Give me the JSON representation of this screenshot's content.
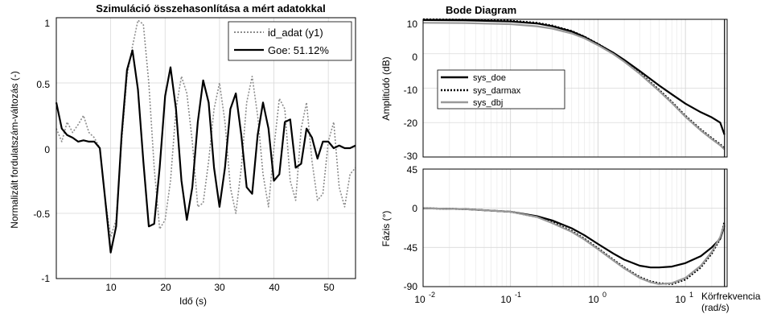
{
  "left_panel": {
    "title": "Szimuláció összehasonlítása a mért adatokkal",
    "xlabel": "Idő (s)",
    "ylabel": "Normalizált fordulatszám-változás (-)",
    "xticks": [
      "10",
      "20",
      "30",
      "40",
      "50"
    ],
    "yticks": [
      "1",
      "0.5",
      "0",
      "-0.5",
      "-1"
    ],
    "legend": [
      "id_adat (y1)",
      "Goe: 51.12%"
    ]
  },
  "right_panel": {
    "title": "Bode Diagram",
    "mag_ylabel": "Amplitúdó (dB)",
    "phase_ylabel": "Fázis (°)",
    "xlabel_line1": "Körfrekvencia",
    "xlabel_line2": "(rad/s)",
    "mag_yticks": [
      "10",
      "0",
      "-10",
      "-20",
      "-30"
    ],
    "phase_yticks": [
      "45",
      "0",
      "-45",
      "-90"
    ],
    "xtick_bases": [
      "10",
      "10",
      "10",
      "10"
    ],
    "xtick_exps": [
      "-2",
      "-1",
      "0",
      "1"
    ],
    "legend": [
      "sys_doe",
      "sys_darmax",
      "sys_dbj"
    ]
  },
  "chart_data": [
    {
      "type": "line",
      "title": "Szimuláció összehasonlítása a mért adatokkal",
      "xlabel": "Idő (s)",
      "ylabel": "Normalizált fordulatszám-változás (-)",
      "xlim": [
        0,
        55
      ],
      "ylim": [
        -1,
        1
      ],
      "grid": true,
      "legend_position": "top-right",
      "series": [
        {
          "name": "id_adat (y1)",
          "style": "dotted",
          "color": "#8c8c8c",
          "x": [
            0,
            1,
            2,
            3,
            4,
            5,
            6,
            7,
            8,
            9,
            10,
            11,
            12,
            13,
            14,
            15,
            16,
            17,
            18,
            19,
            20,
            21,
            22,
            23,
            24,
            25,
            26,
            27,
            28,
            29,
            30,
            31,
            32,
            33,
            34,
            35,
            36,
            37,
            38,
            39,
            40,
            41,
            42,
            43,
            44,
            45,
            46,
            47,
            48,
            49,
            50,
            51,
            52,
            53,
            54,
            55
          ],
          "y": [
            0.15,
            0.05,
            0.2,
            0.12,
            0.18,
            0.25,
            0.12,
            0.08,
            0.0,
            -0.4,
            -0.68,
            -0.55,
            0.05,
            0.55,
            0.78,
            0.98,
            0.95,
            0.5,
            -0.15,
            -0.62,
            -0.55,
            -0.25,
            0.3,
            0.55,
            0.42,
            0.05,
            -0.45,
            -0.42,
            -0.1,
            0.3,
            0.5,
            0.2,
            -0.3,
            -0.5,
            -0.15,
            0.35,
            0.55,
            0.25,
            -0.2,
            -0.45,
            0.0,
            0.38,
            0.3,
            -0.25,
            -0.4,
            0.15,
            0.35,
            -0.1,
            -0.4,
            -0.35,
            0.05,
            0.2,
            -0.3,
            -0.45,
            -0.2,
            -0.15
          ]
        },
        {
          "name": "Goe: 51.12%",
          "style": "solid",
          "color": "#000000",
          "x": [
            0,
            1,
            2,
            3,
            4,
            5,
            6,
            7,
            8,
            9,
            10,
            11,
            12,
            13,
            14,
            15,
            16,
            17,
            18,
            19,
            20,
            21,
            22,
            23,
            24,
            25,
            26,
            27,
            28,
            29,
            30,
            31,
            32,
            33,
            34,
            35,
            36,
            37,
            38,
            39,
            40,
            41,
            42,
            43,
            44,
            45,
            46,
            47,
            48,
            49,
            50,
            51,
            52,
            53,
            54,
            55
          ],
          "y": [
            0.35,
            0.15,
            0.1,
            0.08,
            0.05,
            0.06,
            0.05,
            0.05,
            0.0,
            -0.4,
            -0.8,
            -0.6,
            0.1,
            0.6,
            0.75,
            0.45,
            -0.1,
            -0.6,
            -0.58,
            -0.15,
            0.4,
            0.62,
            0.3,
            -0.25,
            -0.55,
            -0.3,
            0.2,
            0.52,
            0.35,
            -0.15,
            -0.45,
            -0.15,
            0.3,
            0.42,
            0.1,
            -0.3,
            -0.35,
            0.1,
            0.35,
            0.15,
            -0.25,
            -0.2,
            0.2,
            0.22,
            -0.15,
            -0.12,
            0.15,
            0.08,
            -0.08,
            0.05,
            0.05,
            0.0,
            0.02,
            0.0,
            0.0,
            0.02
          ]
        }
      ]
    },
    {
      "type": "line",
      "title": "Bode Diagram",
      "subplot": "magnitude",
      "ylabel": "Amplitúdó (dB)",
      "xscale": "log",
      "xlim": [
        0.01,
        30
      ],
      "ylim": [
        -30,
        10
      ],
      "grid": true,
      "legend_position": "left",
      "series": [
        {
          "name": "sys_doe",
          "style": "solid",
          "color": "#000000",
          "x": [
            0.01,
            0.03,
            0.1,
            0.2,
            0.3,
            0.5,
            0.7,
            1,
            1.5,
            2,
            3,
            5,
            7,
            10,
            15,
            20,
            25,
            28
          ],
          "y": [
            9.8,
            9.7,
            9.4,
            8.8,
            8.0,
            6.5,
            4.9,
            2.8,
            0.3,
            -1.8,
            -5.0,
            -9.2,
            -11.8,
            -14.5,
            -17.0,
            -18.5,
            -20.0,
            -23.5
          ]
        },
        {
          "name": "sys_darmax",
          "style": "dotted",
          "color": "#000000",
          "x": [
            0.01,
            0.03,
            0.1,
            0.2,
            0.3,
            0.5,
            0.7,
            1,
            1.5,
            2,
            3,
            5,
            7,
            10,
            15,
            20,
            25,
            28
          ],
          "y": [
            10.0,
            9.9,
            9.6,
            9.0,
            8.2,
            6.6,
            5.0,
            2.9,
            0.2,
            -2.0,
            -5.5,
            -10.5,
            -14.0,
            -18.0,
            -22.0,
            -24.5,
            -26.3,
            -27.5
          ]
        },
        {
          "name": "sys_dbj",
          "style": "solid",
          "color": "#999999",
          "x": [
            0.01,
            0.03,
            0.1,
            0.2,
            0.3,
            0.5,
            0.7,
            1,
            1.5,
            2,
            3,
            5,
            7,
            10,
            15,
            20,
            25,
            28
          ],
          "y": [
            9.0,
            8.9,
            8.6,
            8.0,
            7.3,
            5.9,
            4.5,
            2.5,
            -0.1,
            -2.3,
            -5.8,
            -10.8,
            -14.3,
            -18.3,
            -22.3,
            -24.8,
            -26.6,
            -27.8
          ]
        }
      ]
    },
    {
      "type": "line",
      "subplot": "phase",
      "ylabel": "Fázis (°)",
      "xlabel": "Körfrekvencia (rad/s)",
      "xscale": "log",
      "xlim": [
        0.01,
        30
      ],
      "ylim": [
        -90,
        45
      ],
      "grid": true,
      "series": [
        {
          "name": "sys_doe",
          "style": "solid",
          "color": "#000000",
          "x": [
            0.01,
            0.03,
            0.1,
            0.2,
            0.3,
            0.5,
            0.7,
            1,
            1.5,
            2,
            3,
            4,
            5,
            7,
            10,
            15,
            20,
            25,
            28
          ],
          "y": [
            0,
            -1,
            -4,
            -9,
            -14,
            -23,
            -31,
            -41,
            -52,
            -59,
            -66,
            -68,
            -68,
            -67,
            -63,
            -55,
            -45,
            -35,
            -20
          ]
        },
        {
          "name": "sys_darmax",
          "style": "dotted",
          "color": "#000000",
          "x": [
            0.01,
            0.03,
            0.1,
            0.2,
            0.3,
            0.5,
            0.7,
            1,
            1.5,
            2,
            3,
            4,
            5,
            7,
            10,
            15,
            20,
            25,
            28
          ],
          "y": [
            0,
            -1,
            -4,
            -10,
            -16,
            -26,
            -35,
            -46,
            -59,
            -68,
            -79,
            -84,
            -86,
            -87,
            -82,
            -68,
            -52,
            -35,
            -15
          ]
        },
        {
          "name": "sys_dbj",
          "style": "solid",
          "color": "#999999",
          "x": [
            0.01,
            0.03,
            0.1,
            0.2,
            0.3,
            0.5,
            0.7,
            1,
            1.5,
            2,
            3,
            4,
            5,
            7,
            10,
            15,
            20,
            25,
            28
          ],
          "y": [
            0,
            -1,
            -4,
            -10,
            -17,
            -27,
            -36,
            -47,
            -60,
            -69,
            -80,
            -85,
            -87,
            -86,
            -80,
            -66,
            -50,
            -33,
            -18
          ]
        }
      ]
    }
  ]
}
